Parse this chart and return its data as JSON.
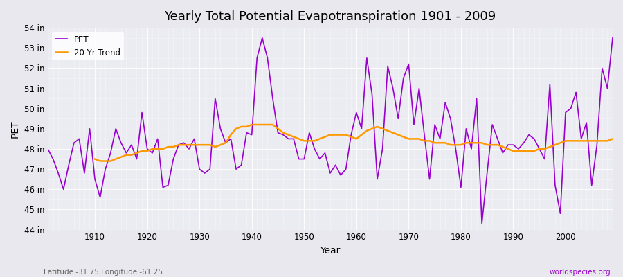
{
  "title": "Yearly Total Potential Evapotranspiration 1901 - 2009",
  "xlabel": "Year",
  "ylabel": "PET",
  "footer_left": "Latitude -31.75 Longitude -61.25",
  "footer_right": "worldspecies.org",
  "legend_pet": "PET",
  "legend_trend": "20 Yr Trend",
  "pet_color": "#9900cc",
  "trend_color": "#ff9900",
  "bg_color": "#e8e8ee",
  "plot_bg_color": "#ebebf2",
  "ylim": [
    44,
    54
  ],
  "yticks": [
    44,
    45,
    46,
    47,
    48,
    49,
    50,
    51,
    52,
    53,
    54
  ],
  "ytick_labels": [
    "44 in",
    "45 in",
    "46 in",
    "47 in",
    "48 in",
    "49 in",
    "50 in",
    "51 in",
    "52 in",
    "53 in",
    "54 in"
  ],
  "years": [
    1901,
    1902,
    1903,
    1904,
    1905,
    1906,
    1907,
    1908,
    1909,
    1910,
    1911,
    1912,
    1913,
    1914,
    1915,
    1916,
    1917,
    1918,
    1919,
    1920,
    1921,
    1922,
    1923,
    1924,
    1925,
    1926,
    1927,
    1928,
    1929,
    1930,
    1931,
    1932,
    1933,
    1934,
    1935,
    1936,
    1937,
    1938,
    1939,
    1940,
    1941,
    1942,
    1943,
    1944,
    1945,
    1946,
    1947,
    1948,
    1949,
    1950,
    1951,
    1952,
    1953,
    1954,
    1955,
    1956,
    1957,
    1958,
    1959,
    1960,
    1961,
    1962,
    1963,
    1964,
    1965,
    1966,
    1967,
    1968,
    1969,
    1970,
    1971,
    1972,
    1973,
    1974,
    1975,
    1976,
    1977,
    1978,
    1979,
    1980,
    1981,
    1982,
    1983,
    1984,
    1985,
    1986,
    1987,
    1988,
    1989,
    1990,
    1991,
    1992,
    1993,
    1994,
    1995,
    1996,
    1997,
    1998,
    1999,
    2000,
    2001,
    2002,
    2003,
    2004,
    2005,
    2006,
    2007,
    2008,
    2009
  ],
  "pet_values": [
    48.0,
    47.5,
    46.8,
    46.0,
    47.2,
    48.3,
    48.5,
    46.8,
    49.0,
    46.5,
    45.6,
    47.0,
    47.8,
    49.0,
    48.3,
    47.8,
    48.2,
    47.5,
    49.8,
    48.0,
    47.8,
    48.5,
    46.1,
    46.2,
    47.5,
    48.2,
    48.3,
    48.0,
    48.5,
    47.0,
    46.8,
    47.0,
    50.5,
    49.0,
    48.3,
    48.5,
    47.0,
    47.2,
    48.8,
    48.7,
    52.5,
    53.5,
    52.5,
    50.5,
    48.8,
    48.7,
    48.5,
    48.5,
    47.5,
    47.5,
    48.8,
    48.0,
    47.5,
    47.8,
    46.8,
    47.2,
    46.7,
    47.0,
    48.7,
    49.8,
    49.0,
    52.5,
    50.7,
    46.5,
    48.0,
    52.1,
    51.0,
    49.5,
    51.5,
    52.2,
    49.2,
    51.0,
    48.7,
    46.5,
    49.2,
    48.5,
    50.3,
    49.5,
    48.0,
    46.1,
    49.0,
    48.0,
    50.5,
    44.3,
    46.8,
    49.2,
    48.5,
    47.8,
    48.2,
    48.2,
    48.0,
    48.3,
    48.7,
    48.5,
    48.0,
    47.5,
    51.2,
    46.2,
    44.8,
    49.8,
    50.0,
    50.8,
    48.5,
    49.3,
    46.2,
    48.2,
    52.0,
    51.0,
    53.5
  ],
  "trend_years": [
    1910,
    1911,
    1912,
    1913,
    1914,
    1915,
    1916,
    1917,
    1918,
    1919,
    1920,
    1921,
    1922,
    1923,
    1924,
    1925,
    1926,
    1927,
    1928,
    1929,
    1930,
    1931,
    1932,
    1933,
    1934,
    1935,
    1936,
    1937,
    1938,
    1939,
    1940,
    1941,
    1942,
    1943,
    1944,
    1945,
    1946,
    1947,
    1948,
    1949,
    1950,
    1951,
    1952,
    1953,
    1954,
    1955,
    1956,
    1957,
    1958,
    1959,
    1960,
    1961,
    1962,
    1963,
    1964,
    1965,
    1966,
    1967,
    1968,
    1969,
    1970,
    1971,
    1972,
    1973,
    1974,
    1975,
    1976,
    1977,
    1978,
    1979,
    1980,
    1981,
    1982,
    1983,
    1984,
    1985,
    1986,
    1987,
    1988,
    1989,
    1990,
    1991,
    1992,
    1993,
    1994,
    1995,
    1996,
    1997,
    1998,
    1999,
    2000,
    2001,
    2002,
    2003,
    2004,
    2005,
    2006,
    2007,
    2008,
    2009
  ],
  "trend_values": [
    47.5,
    47.4,
    47.4,
    47.4,
    47.5,
    47.6,
    47.7,
    47.7,
    47.8,
    47.9,
    47.9,
    48.0,
    48.0,
    48.0,
    48.1,
    48.1,
    48.2,
    48.2,
    48.2,
    48.2,
    48.2,
    48.2,
    48.2,
    48.1,
    48.2,
    48.3,
    48.7,
    49.0,
    49.1,
    49.1,
    49.2,
    49.2,
    49.2,
    49.2,
    49.2,
    49.0,
    48.8,
    48.7,
    48.6,
    48.5,
    48.4,
    48.4,
    48.4,
    48.5,
    48.6,
    48.7,
    48.7,
    48.7,
    48.7,
    48.6,
    48.5,
    48.7,
    48.9,
    49.0,
    49.1,
    49.0,
    48.9,
    48.8,
    48.7,
    48.6,
    48.5,
    48.5,
    48.5,
    48.4,
    48.4,
    48.3,
    48.3,
    48.3,
    48.2,
    48.2,
    48.2,
    48.3,
    48.3,
    48.3,
    48.3,
    48.2,
    48.2,
    48.2,
    48.1,
    48.0,
    47.9,
    47.9,
    47.9,
    47.9,
    47.9,
    48.0,
    48.0,
    48.1,
    48.2,
    48.3,
    48.4,
    48.4,
    48.4,
    48.4,
    48.4,
    48.4,
    48.4,
    48.4,
    48.4,
    48.5
  ]
}
